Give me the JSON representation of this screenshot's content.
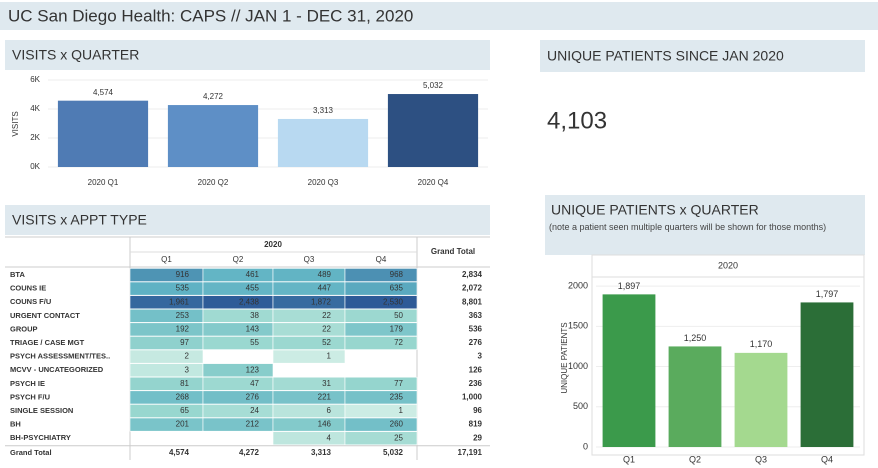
{
  "header": {
    "title": "UC San Diego Health: CAPS  // JAN 1 - DEC 31, 2020"
  },
  "chart_data": [
    {
      "type": "bar",
      "title": "VISITS x QUARTER",
      "y_label": "VISITS",
      "categories": [
        "2020 Q1",
        "2020 Q2",
        "2020 Q3",
        "2020 Q4"
      ],
      "values": [
        4574,
        4272,
        3313,
        5032
      ],
      "value_labels": [
        "4,574",
        "4,272",
        "3,313",
        "5,032"
      ],
      "colors": [
        "#4f7bb4",
        "#5e8fc6",
        "#b8d9f1",
        "#2d5082"
      ],
      "ylim": [
        0,
        6000
      ],
      "yticks": [
        {
          "value": 0,
          "label": "0K"
        },
        {
          "value": 2000,
          "label": "2K"
        },
        {
          "value": 4000,
          "label": "4K"
        },
        {
          "value": 6000,
          "label": "6K"
        }
      ],
      "grid": true
    },
    {
      "type": "bar",
      "title": "UNIQUE PATIENTS x QUARTER",
      "subtitle": "(note a patient seen multiple quarters will be shown for those months)",
      "column_header": "2020",
      "y_label": "UNIQUE PATIENTS",
      "categories": [
        "Q1",
        "Q2",
        "Q3",
        "Q4"
      ],
      "values": [
        1897,
        1250,
        1170,
        1797
      ],
      "value_labels": [
        "1,897",
        "1,250",
        "1,170",
        "1,797"
      ],
      "colors": [
        "#3b9a4b",
        "#5aab5d",
        "#a4d98f",
        "#2b6e37"
      ],
      "ylim": [
        0,
        2200
      ],
      "yticks": [
        0,
        500,
        1000,
        1500,
        2000
      ],
      "grid": true
    }
  ],
  "kpi": {
    "title": "UNIQUE PATIENTS SINCE JAN 2020",
    "value": "4,103"
  },
  "table": {
    "title": "VISITS x APPT TYPE",
    "year": "2020",
    "columns": [
      "Q1",
      "Q2",
      "Q3",
      "Q4"
    ],
    "total_header": "Grand Total",
    "rows": [
      {
        "label": "BTA",
        "cells": [
          "916",
          "461",
          "489",
          "968"
        ],
        "total": "2,834"
      },
      {
        "label": "COUNS IE",
        "cells": [
          "535",
          "455",
          "447",
          "635"
        ],
        "total": "2,072"
      },
      {
        "label": "COUNS F/U",
        "cells": [
          "1,961",
          "2,438",
          "1,872",
          "2,530"
        ],
        "total": "8,801"
      },
      {
        "label": "URGENT CONTACT",
        "cells": [
          "253",
          "38",
          "22",
          "50"
        ],
        "total": "363"
      },
      {
        "label": "GROUP",
        "cells": [
          "192",
          "143",
          "22",
          "179"
        ],
        "total": "536"
      },
      {
        "label": "TRIAGE / CASE MGT",
        "cells": [
          "97",
          "55",
          "52",
          "72"
        ],
        "total": "276"
      },
      {
        "label": "PSYCH ASSESSMENT/TES..",
        "cells": [
          "2",
          null,
          "1",
          null
        ],
        "total": "3"
      },
      {
        "label": "MCVV - UNCATEGORIZED",
        "cells": [
          "3",
          "123",
          null,
          null
        ],
        "total": "126"
      },
      {
        "label": "PSYCH IE",
        "cells": [
          "81",
          "47",
          "31",
          "77"
        ],
        "total": "236"
      },
      {
        "label": "PSYCH F/U",
        "cells": [
          "268",
          "276",
          "221",
          "235"
        ],
        "total": "1,000"
      },
      {
        "label": "SINGLE SESSION",
        "cells": [
          "65",
          "24",
          "6",
          "1"
        ],
        "total": "96"
      },
      {
        "label": "BH",
        "cells": [
          "201",
          "212",
          "146",
          "260"
        ],
        "total": "819"
      },
      {
        "label": "BH-PSYCHIATRY",
        "cells": [
          null,
          null,
          "4",
          "25"
        ],
        "total": "29"
      }
    ],
    "grand_total": {
      "label": "Grand Total",
      "cells": [
        "4,574",
        "4,272",
        "3,313",
        "5,032"
      ],
      "total": "17,191"
    }
  }
}
